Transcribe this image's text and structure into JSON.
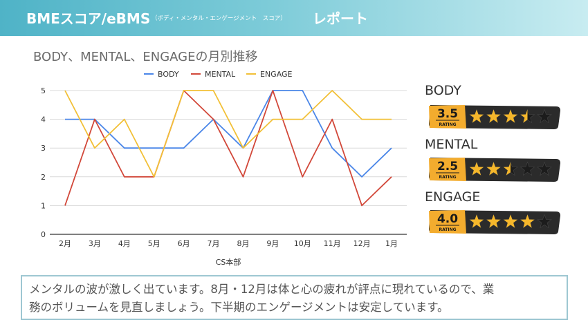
{
  "header": {
    "title": "BMEスコア/eBMS",
    "subtitle": "（ボディ・メンタル・エンゲージメント　スコア）",
    "report": "レポート"
  },
  "chart_data": {
    "type": "line",
    "title": "BODY、MENTAL、ENGAGEの月別推移",
    "xlabel": "CS本部",
    "ylabel": "",
    "ylim": [
      0,
      5
    ],
    "yticks": [
      0,
      1,
      2,
      3,
      4,
      5
    ],
    "grid": true,
    "legend_position": "top",
    "categories": [
      "2月",
      "3月",
      "4月",
      "5月",
      "6月",
      "7月",
      "8月",
      "9月",
      "10月",
      "11月",
      "12月",
      "1月"
    ],
    "series": [
      {
        "name": "BODY",
        "color": "#4a86e8",
        "values": [
          4,
          4,
          3,
          3,
          3,
          4,
          3,
          5,
          5,
          3,
          2,
          3
        ]
      },
      {
        "name": "MENTAL",
        "color": "#d2483a",
        "values": [
          1,
          4,
          2,
          2,
          5,
          4,
          2,
          5,
          2,
          4,
          1,
          2
        ]
      },
      {
        "name": "ENGAGE",
        "color": "#f2c037",
        "values": [
          5,
          3,
          4,
          2,
          5,
          5,
          3,
          4,
          4,
          5,
          4,
          4
        ]
      }
    ]
  },
  "ratings": [
    {
      "label": "BODY",
      "score": "3.5",
      "value": 3.5,
      "caption": "RATING"
    },
    {
      "label": "MENTAL",
      "score": "2.5",
      "value": 2.5,
      "caption": "RATING"
    },
    {
      "label": "ENGAGE",
      "score": "4.0",
      "value": 4.0,
      "caption": "RATING"
    }
  ],
  "colors": {
    "star_on": "#f5b72b",
    "star_off": "#1c1c1c",
    "badge_bg": "#2b2b2b",
    "badge_gold": "#f3ac2e",
    "header_from": "#4fb3c7",
    "header_to": "#c8ecf1",
    "comment_border": "#9ec7d2"
  },
  "comment": {
    "line1": "メンタルの波が激しく出ています。8月・12月は体と心の疲れが評点に現れているので、業",
    "line2": "務のボリュームを見直しましょう。下半期のエンゲージメントは安定しています。"
  }
}
